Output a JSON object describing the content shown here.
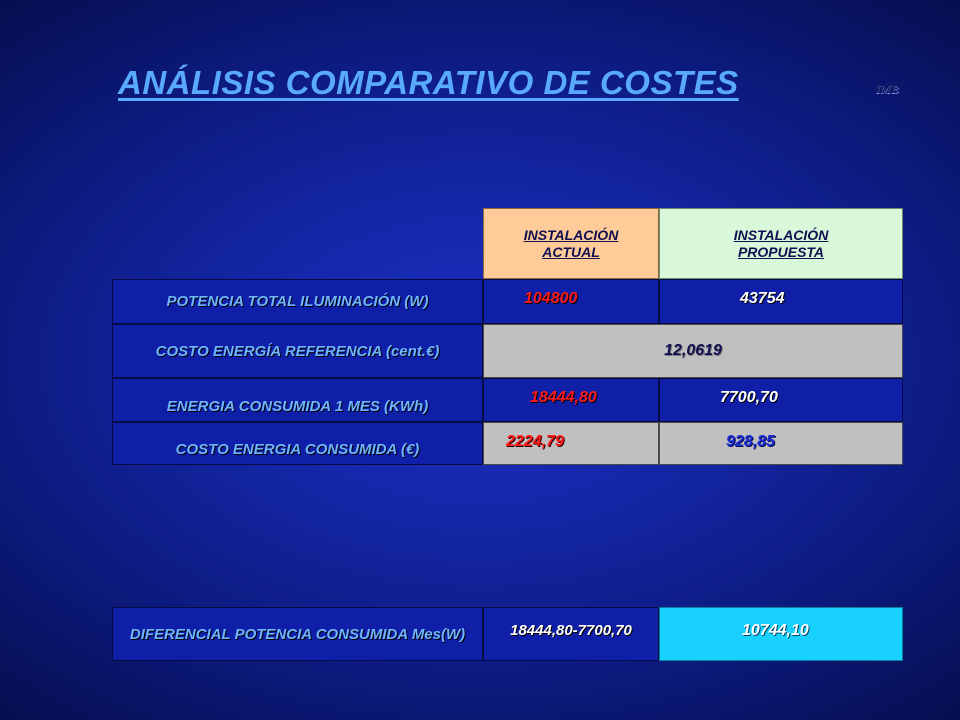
{
  "title": "ANÁLISIS COMPARATIVO DE COSTES",
  "author": "IMB",
  "table": {
    "headers": [
      "INSTALACIÓN ACTUAL",
      "INSTALACIÓN PROPUESTA"
    ],
    "rows": [
      {
        "label": "POTENCIA TOTAL ILUMINACIÓN (W)",
        "actual": "104800",
        "propuesta": "43754"
      },
      {
        "label": "COSTO  ENERGÍA REFERENCIA (cent.€)",
        "shared": "12,0619"
      },
      {
        "label": "ENERGIA CONSUMIDA 1 MES (KWh)",
        "actual": "18444,80",
        "propuesta": "7700,70"
      },
      {
        "label": "COSTO ENERGIA CONSUMIDA (€)",
        "actual": "2224,79",
        "propuesta": "928,85"
      }
    ]
  },
  "differential": {
    "label": "DIFERENCIAL POTENCIA CONSUMIDA Mes(W)",
    "formula": "18444,80-7700,70",
    "result": "10744,10"
  }
}
